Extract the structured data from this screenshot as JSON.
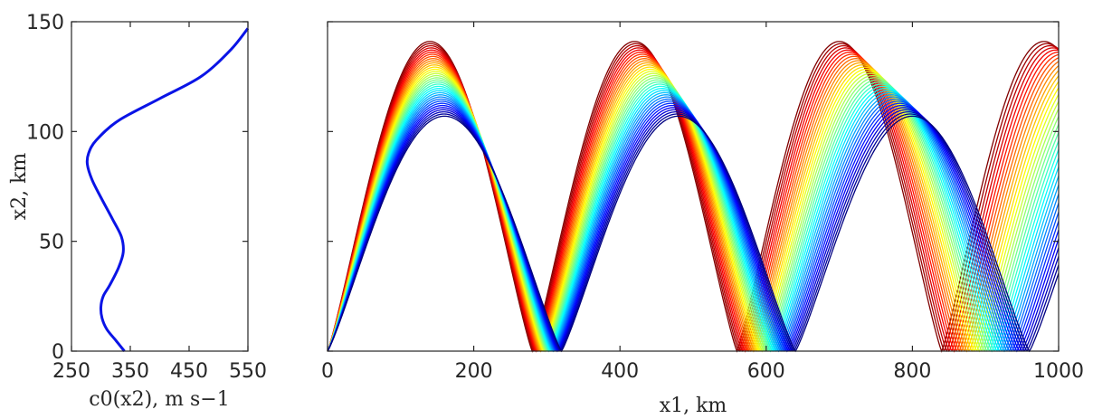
{
  "chart_data": [
    {
      "type": "line",
      "xlabel": "c0(x2), m s−1",
      "ylabel": "x2, km",
      "xlim": [
        250,
        550
      ],
      "ylim": [
        0,
        150
      ],
      "xticks": [
        "250",
        "350",
        "450",
        "550"
      ],
      "yticks": [
        "0",
        "50",
        "100",
        "150"
      ],
      "line_color": "#0a14e6",
      "series": [
        {
          "x": [
            340,
            325,
            310,
            302,
            300,
            304,
            315,
            330,
            338,
            335,
            320,
            300,
            285,
            277,
            279,
            292,
            330,
            400,
            470,
            520,
            550
          ],
          "y": [
            0,
            5,
            10,
            15,
            20,
            25,
            30,
            38,
            45,
            52,
            60,
            70,
            78,
            85,
            90,
            96,
            105,
            115,
            125,
            137,
            147
          ]
        }
      ]
    },
    {
      "type": "line",
      "xlabel": "x1, km",
      "xlim": [
        0,
        1000
      ],
      "ylim": [
        0,
        150
      ],
      "xticks": [
        "0",
        "200",
        "400",
        "600",
        "800",
        "1000"
      ],
      "colormap": "jet",
      "ray_family": {
        "ray_count": 36,
        "ray_amplitude_range_km": [
          107,
          141
        ],
        "ray_half_period_range_km": [
          280,
          320
        ],
        "color_order": "blue (low apex) to dark red (high apex)"
      }
    }
  ]
}
